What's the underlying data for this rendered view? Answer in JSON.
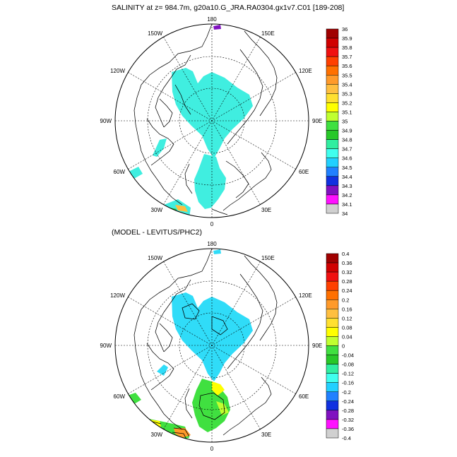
{
  "top_panel": {
    "title": "SALINITY at z= 984.7m, g20a10.G_JRA.RA0304.gx1v7.C01 [189-208]",
    "lon_labels": [
      "180",
      "150E",
      "120E",
      "90E",
      "60E",
      "30E",
      "0",
      "30W",
      "60W",
      "90W",
      "120W",
      "150W"
    ],
    "colorbar": {
      "labels": [
        "36",
        "35.9",
        "35.8",
        "35.7",
        "35.6",
        "35.5",
        "35.4",
        "35.3",
        "35.2",
        "35.1",
        "35",
        "34.9",
        "34.8",
        "34.7",
        "34.6",
        "34.5",
        "34.4",
        "34.3",
        "34.2",
        "34.1",
        "34"
      ]
    }
  },
  "bottom_panel": {
    "title": "(MODEL - LEVITUS/PHC2)",
    "lon_labels": [
      "180",
      "150E",
      "120E",
      "90E",
      "60E",
      "30E",
      "0",
      "30W",
      "60W",
      "90W",
      "120W",
      "150W"
    ],
    "colorbar": {
      "labels": [
        "0.4",
        "0.36",
        "0.32",
        "0.28",
        "0.24",
        "0.2",
        "0.16",
        "0.12",
        "0.08",
        "0.04",
        "0",
        "-0.04",
        "-0.08",
        "-0.12",
        "-0.16",
        "-0.2",
        "-0.24",
        "-0.28",
        "-0.32",
        "-0.36",
        "-0.4"
      ]
    }
  },
  "colors": {
    "scale": [
      "#a00000",
      "#d00000",
      "#f01010",
      "#ff4000",
      "#ff7000",
      "#ff9a2a",
      "#ffbf40",
      "#ffe030",
      "#ffff00",
      "#c0ff30",
      "#40e040",
      "#28c828",
      "#30eea0",
      "#40ffee",
      "#22d0ff",
      "#2080ff",
      "#1030e0",
      "#8010c0",
      "#ff10ff",
      "#d0d0d0",
      "#707070"
    ],
    "ocean_top": "#40eee0",
    "ocean_bottom": "#30dcf8"
  }
}
